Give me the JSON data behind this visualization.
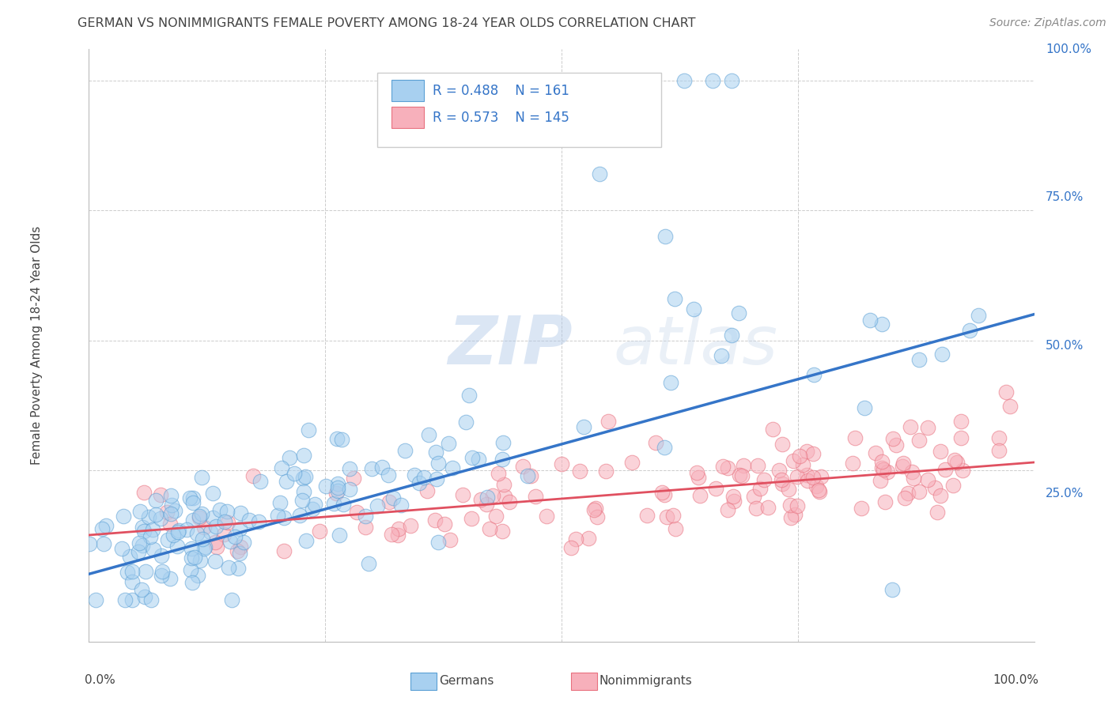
{
  "title": "GERMAN VS NONIMMIGRANTS FEMALE POVERTY AMONG 18-24 YEAR OLDS CORRELATION CHART",
  "source": "Source: ZipAtlas.com",
  "ylabel": "Female Poverty Among 18-24 Year Olds",
  "watermark_zip": "ZIP",
  "watermark_atlas": "atlas",
  "german_R": 0.488,
  "german_N": 161,
  "nonimmigrant_R": 0.573,
  "nonimmigrant_N": 145,
  "german_color": "#a8d0f0",
  "nonimmigrant_color": "#f7b0bb",
  "german_edge_color": "#5a9fd4",
  "nonimmigrant_edge_color": "#e8707e",
  "german_line_color": "#3575c8",
  "nonimmigrant_line_color": "#e05060",
  "background_color": "#ffffff",
  "grid_color": "#cccccc",
  "title_color": "#444444",
  "axis_label_color": "#3575c8",
  "legend_text_color": "#3575c8",
  "source_color": "#888888"
}
